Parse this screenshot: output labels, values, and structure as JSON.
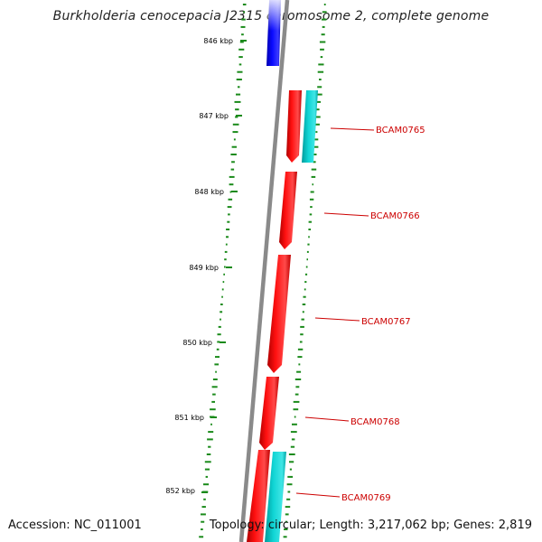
{
  "map": {
    "title": "Burkholderia cenocepacia J2315 chromosome 2, complete genome",
    "accession": "Accession: NC_011001",
    "topology": "Topology: circular; Length: 3,217,062 bp; Genes: 2,819"
  },
  "colors": {
    "forward_cds": "#ff0000",
    "reverse_cds": "#0000ff",
    "other_feature": "#00c8c8",
    "backbone": "#808080",
    "gc_ticks": "#1a8a1a",
    "gene_label": "#cc0000",
    "ruler_label": "#000000"
  },
  "ruler": [
    {
      "label": "846 kbp"
    },
    {
      "label": "847 kbp"
    },
    {
      "label": "848 kbp"
    },
    {
      "label": "849 kbp"
    },
    {
      "label": "850 kbp"
    },
    {
      "label": "851 kbp"
    },
    {
      "label": "852 kbp"
    }
  ],
  "genes": [
    {
      "label": "BCAM0765"
    },
    {
      "label": "BCAM0766"
    },
    {
      "label": "BCAM0767"
    },
    {
      "label": "BCAM0768"
    },
    {
      "label": "BCAM0769"
    }
  ]
}
